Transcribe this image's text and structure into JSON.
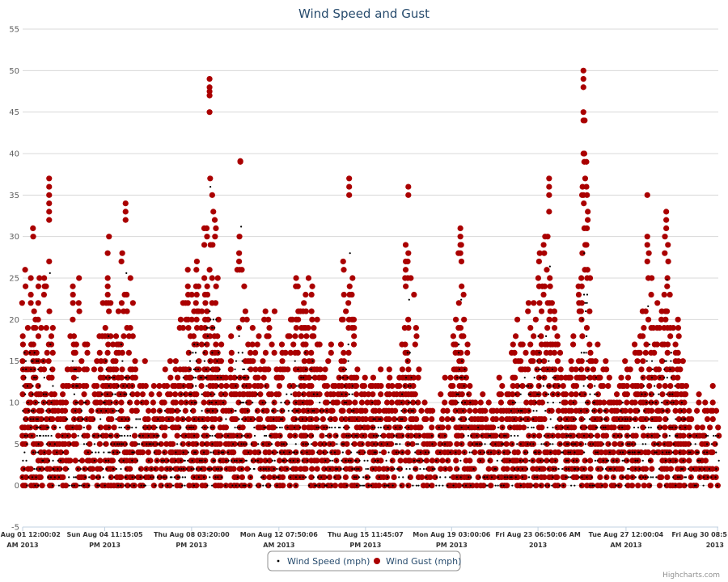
{
  "credits": "Highcharts.com",
  "colors": {
    "speed": "#000000",
    "gust": "#aa0000",
    "grid": "#d8d8d8",
    "title": "#274b6d"
  },
  "chart_data": {
    "type": "scatter",
    "title": "Wind Speed and Gust",
    "xlabel": "",
    "ylabel": "",
    "ylim": [
      -5,
      55
    ],
    "yticks": [
      "-5",
      "0",
      "5",
      "10",
      "15",
      "20",
      "25",
      "30",
      "35",
      "40",
      "45",
      "50",
      "55"
    ],
    "grid": true,
    "legend_position": "bottom-center",
    "xlim_days": [
      0,
      29.4
    ],
    "xticks": [
      {
        "line1": "Thu Aug 01 12:00:02",
        "line2": "AM 2013",
        "day": 0.0
      },
      {
        "line1": "Sun Aug 04 11:15:05",
        "line2": "PM 2013",
        "day": 3.47
      },
      {
        "line1": "Thu Aug 08 03:20:00",
        "line2": "PM 2013",
        "day": 7.14
      },
      {
        "line1": "Mon Aug 12 07:50:06",
        "line2": "AM 2013",
        "day": 10.83
      },
      {
        "line1": "Thu Aug 15 11:45:07",
        "line2": "PM 2013",
        "day": 14.49
      },
      {
        "line1": "Mon Aug 19 03:00:06",
        "line2": "PM 2013",
        "day": 18.13
      },
      {
        "line1": "Fri Aug 23 06:50:06 AM",
        "line2": "2013",
        "day": 21.78
      },
      {
        "line1": "Tue Aug 27 12:00:04",
        "line2": "AM 2013",
        "day": 25.5
      },
      {
        "line1": "Fri Aug 30 08:5",
        "line2": "2013",
        "day": 29.37
      }
    ],
    "series": [
      {
        "name": "Wind Speed (mph)",
        "color": "#000000",
        "marker": "dot"
      },
      {
        "name": "Wind Gust (mph)",
        "color": "#aa0000",
        "marker": "circle"
      }
    ],
    "gust_envelope": [
      [
        0.0,
        28
      ],
      [
        0.3,
        33
      ],
      [
        0.55,
        32
      ],
      [
        0.8,
        26
      ],
      [
        1.1,
        37
      ],
      [
        1.4,
        10
      ],
      [
        1.8,
        15
      ],
      [
        2.2,
        31
      ],
      [
        2.6,
        20
      ],
      [
        2.9,
        12
      ],
      [
        3.2,
        20
      ],
      [
        3.5,
        33
      ],
      [
        3.9,
        24
      ],
      [
        4.3,
        34
      ],
      [
        4.6,
        24
      ],
      [
        5.0,
        17
      ],
      [
        5.5,
        13
      ],
      [
        6.0,
        17
      ],
      [
        6.5,
        15
      ],
      [
        6.9,
        32
      ],
      [
        7.3,
        33
      ],
      [
        7.6,
        24
      ],
      [
        7.9,
        49
      ],
      [
        8.3,
        30
      ],
      [
        8.7,
        17
      ],
      [
        9.2,
        39
      ],
      [
        9.6,
        20
      ],
      [
        10.0,
        21
      ],
      [
        10.5,
        25
      ],
      [
        11.0,
        18
      ],
      [
        11.5,
        29
      ],
      [
        11.9,
        28
      ],
      [
        12.3,
        25
      ],
      [
        12.8,
        19
      ],
      [
        13.3,
        15
      ],
      [
        13.8,
        37
      ],
      [
        14.2,
        11
      ],
      [
        14.8,
        18
      ],
      [
        15.3,
        13
      ],
      [
        15.9,
        16
      ],
      [
        16.3,
        36
      ],
      [
        16.8,
        13
      ],
      [
        17.3,
        10
      ],
      [
        18.0,
        14
      ],
      [
        18.5,
        31
      ],
      [
        19.0,
        14
      ],
      [
        19.5,
        12
      ],
      [
        20.0,
        13
      ],
      [
        20.5,
        15
      ],
      [
        21.0,
        22
      ],
      [
        21.4,
        24
      ],
      [
        21.8,
        30
      ],
      [
        22.2,
        37
      ],
      [
        22.6,
        21
      ],
      [
        23.0,
        17
      ],
      [
        23.4,
        20
      ],
      [
        23.7,
        50
      ],
      [
        24.1,
        23
      ],
      [
        24.5,
        18
      ],
      [
        25.0,
        12
      ],
      [
        25.5,
        19
      ],
      [
        26.0,
        17
      ],
      [
        26.4,
        35
      ],
      [
        26.8,
        23
      ],
      [
        27.2,
        33
      ],
      [
        27.6,
        23
      ],
      [
        28.0,
        15
      ],
      [
        28.4,
        12
      ],
      [
        28.8,
        11
      ],
      [
        29.3,
        14
      ]
    ],
    "gust_spikes": [
      {
        "day": 1.12,
        "values": [
          32,
          33,
          34,
          35,
          36,
          37
        ]
      },
      {
        "day": 4.35,
        "values": [
          32,
          33,
          34
        ]
      },
      {
        "day": 7.9,
        "values": [
          45,
          47,
          47.5,
          48,
          49
        ]
      },
      {
        "day": 9.2,
        "values": [
          39,
          39.1
        ]
      },
      {
        "day": 13.8,
        "values": [
          35,
          36,
          37
        ]
      },
      {
        "day": 16.3,
        "values": [
          28,
          35,
          36
        ]
      },
      {
        "day": 18.5,
        "values": [
          28,
          29,
          30,
          31
        ]
      },
      {
        "day": 22.25,
        "values": [
          33,
          35,
          36,
          37
        ]
      },
      {
        "day": 23.7,
        "values": [
          35,
          40,
          44,
          45,
          48,
          49,
          50
        ]
      },
      {
        "day": 26.4,
        "values": [
          27,
          29,
          30,
          35
        ]
      },
      {
        "day": 27.2,
        "values": [
          31,
          32,
          33
        ]
      }
    ]
  }
}
